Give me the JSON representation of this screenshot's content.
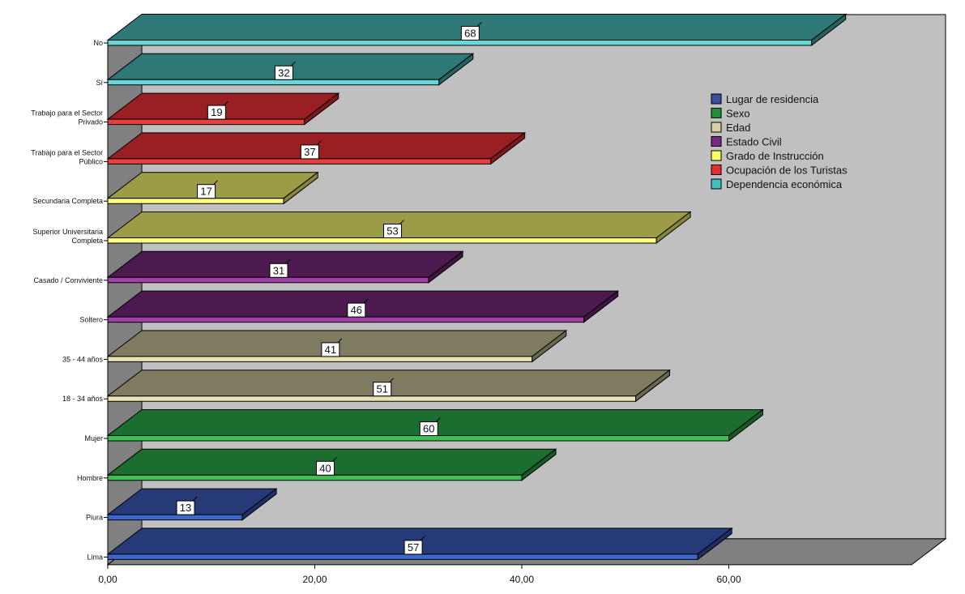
{
  "chart_data": {
    "type": "bar",
    "orientation": "horizontal",
    "three_d": true,
    "title": "",
    "xlabel": "",
    "ylabel": "",
    "xlim": [
      0,
      60
    ],
    "x_ticks": [
      "0,00",
      "20,00",
      "40,00",
      "60,00"
    ],
    "grid": false,
    "legend_position": "right",
    "categories": [
      {
        "label": [
          "No"
        ],
        "value": 68,
        "series": "Dependencia económica"
      },
      {
        "label": [
          "Sí"
        ],
        "value": 32,
        "series": "Dependencia económica"
      },
      {
        "label": [
          "Trabajo para el Sector",
          "Privado"
        ],
        "value": 19,
        "series": "Ocupación de los Turistas"
      },
      {
        "label": [
          "Trabajo para el Sector",
          "Público"
        ],
        "value": 37,
        "series": "Ocupación de los Turistas"
      },
      {
        "label": [
          "Secundaria Completa"
        ],
        "value": 17,
        "series": "Grado de Instrucción"
      },
      {
        "label": [
          "Superior Universitaria",
          "Completa"
        ],
        "value": 53,
        "series": "Grado de Instrucción"
      },
      {
        "label": [
          "Casado / Conviviente"
        ],
        "value": 31,
        "series": "Estado Civil"
      },
      {
        "label": [
          "Soltero"
        ],
        "value": 46,
        "series": "Estado Civil"
      },
      {
        "label": [
          "35 - 44 años"
        ],
        "value": 41,
        "series": "Edad"
      },
      {
        "label": [
          "18 - 34 años"
        ],
        "value": 51,
        "series": "Edad"
      },
      {
        "label": [
          "Mujer"
        ],
        "value": 60,
        "series": "Sexo"
      },
      {
        "label": [
          "Hombre"
        ],
        "value": 40,
        "series": "Sexo"
      },
      {
        "label": [
          "Piura"
        ],
        "value": 13,
        "series": "Lugar de residencia"
      },
      {
        "label": [
          "Lima"
        ],
        "value": 57,
        "series": "Lugar de residencia"
      }
    ],
    "series": [
      {
        "name": "Lugar de residencia",
        "legend_color": "#3a4fa0",
        "face": "#263a78",
        "top": "#1e2f66",
        "edge": "#3d66cf"
      },
      {
        "name": "Sexo",
        "legend_color": "#1f8f3a",
        "face": "#1c6e30",
        "top": "#165a27",
        "edge": "#3fbf52"
      },
      {
        "name": "Edad",
        "legend_color": "#d8cfa0",
        "face": "#7e7b60",
        "top": "#6a674f",
        "edge": "#e9e2b0"
      },
      {
        "name": "Estado Civil",
        "legend_color": "#7a2a80",
        "face": "#4c1a4e",
        "top": "#3f1541",
        "edge": "#a040a8"
      },
      {
        "name": "Grado de Instrucción",
        "legend_color": "#ffff66",
        "face": "#9c9c48",
        "top": "#85853c",
        "edge": "#ffff80"
      },
      {
        "name": "Ocupación de los Turistas",
        "legend_color": "#e03030",
        "face": "#9a1f23",
        "top": "#7e181b",
        "edge": "#e84040"
      },
      {
        "name": "Dependencia económica",
        "legend_color": "#40c0c0",
        "face": "#2f7878",
        "top": "#266464",
        "edge": "#6ad6d6"
      }
    ]
  }
}
